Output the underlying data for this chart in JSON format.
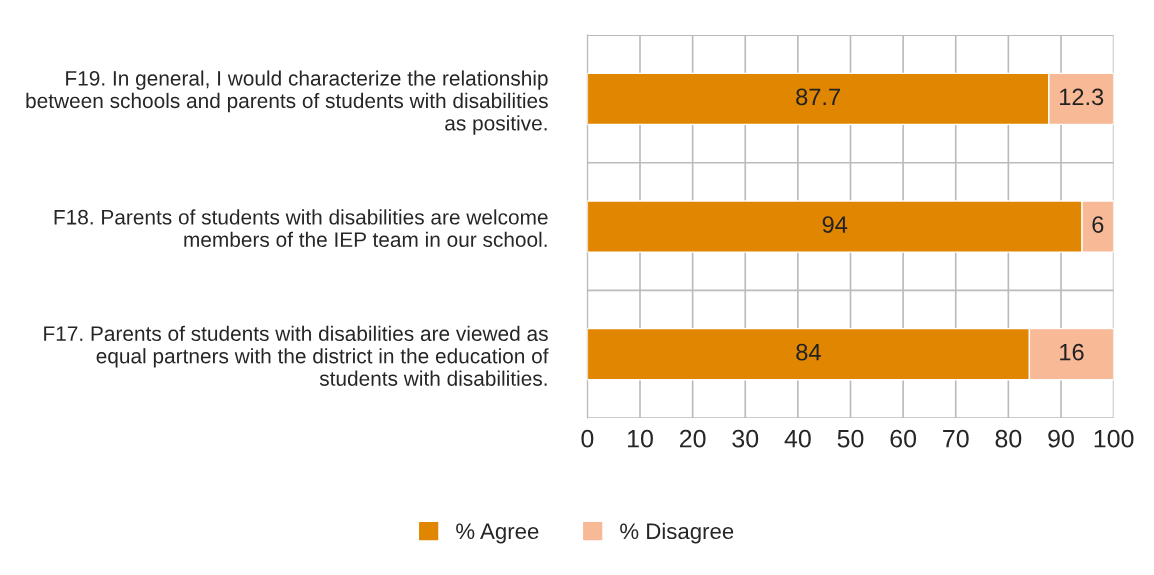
{
  "chart_data": {
    "type": "bar",
    "orientation": "horizontal",
    "stacked": true,
    "categories": [
      "F19. In general, I would characterize the relationship\nbetween schools and parents of students with disabilities\nas positive.",
      "F18. Parents of students with disabilities are welcome\nmembers of the IEP team in our school.",
      "F17. Parents of students with disabilities are viewed as\nequal partners with the district in the education of\nstudents with disabilities."
    ],
    "series": [
      {
        "name": "% Agree",
        "color": "#e08600",
        "values": [
          87.7,
          94,
          84
        ]
      },
      {
        "name": "% Disagree",
        "color": "#f8b996",
        "values": [
          12.3,
          6,
          16
        ]
      }
    ],
    "xlim": [
      0,
      100
    ],
    "xticks": [
      0,
      10,
      20,
      30,
      40,
      50,
      60,
      70,
      80,
      90,
      100
    ],
    "grid": true,
    "legend": "bottom",
    "data_labels": true
  }
}
